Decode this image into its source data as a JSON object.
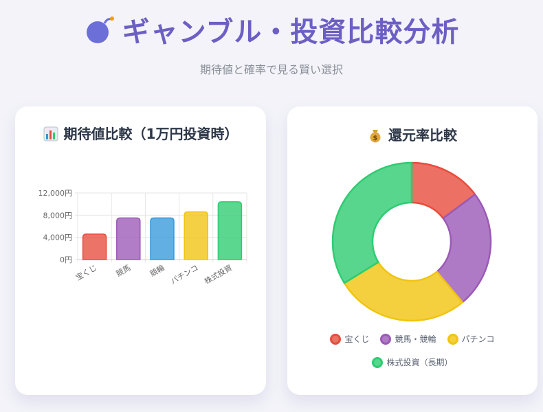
{
  "header": {
    "title": "ギャンブル・投資比較分析",
    "subtitle": "期待値と確率で見る賢い選択",
    "icon": "bomb-icon"
  },
  "colors": {
    "accent": "#6c5fc4",
    "red": "#e74c3c",
    "purple": "#9b59b6",
    "blue": "#3498db",
    "yellow": "#f1c40f",
    "green": "#2ecc71"
  },
  "expected_card": {
    "title": "期待値比較（1万円投資時）",
    "icon": "bar-chart-icon"
  },
  "return_card": {
    "title": "還元率比較",
    "icon": "money-bag-icon"
  },
  "chart_data": [
    {
      "type": "bar",
      "title": "期待値比較（1万円投資時）",
      "categories": [
        "宝くじ",
        "競馬",
        "競輪",
        "パチンコ",
        "株式投資"
      ],
      "values": [
        4600,
        7500,
        7500,
        8600,
        10400
      ],
      "colors": [
        "#e74c3c",
        "#9b59b6",
        "#3498db",
        "#f1c40f",
        "#2ecc71"
      ],
      "ylim": [
        0,
        12000
      ],
      "yticks": [
        "0円",
        "4,000円",
        "8,000円",
        "12,000円"
      ],
      "ytick_values": [
        0,
        4000,
        8000,
        12000
      ],
      "grid": true,
      "legend": "none"
    },
    {
      "type": "pie",
      "title": "還元率比較",
      "labels": [
        "宝くじ",
        "競馬・競輪",
        "パチンコ",
        "株式投資（長期）"
      ],
      "values": [
        46,
        75,
        85,
        105
      ],
      "colors": [
        "#e74c3c",
        "#9b59b6",
        "#f1c40f",
        "#2ecc71"
      ],
      "donut": true,
      "legend": "bottom"
    }
  ]
}
